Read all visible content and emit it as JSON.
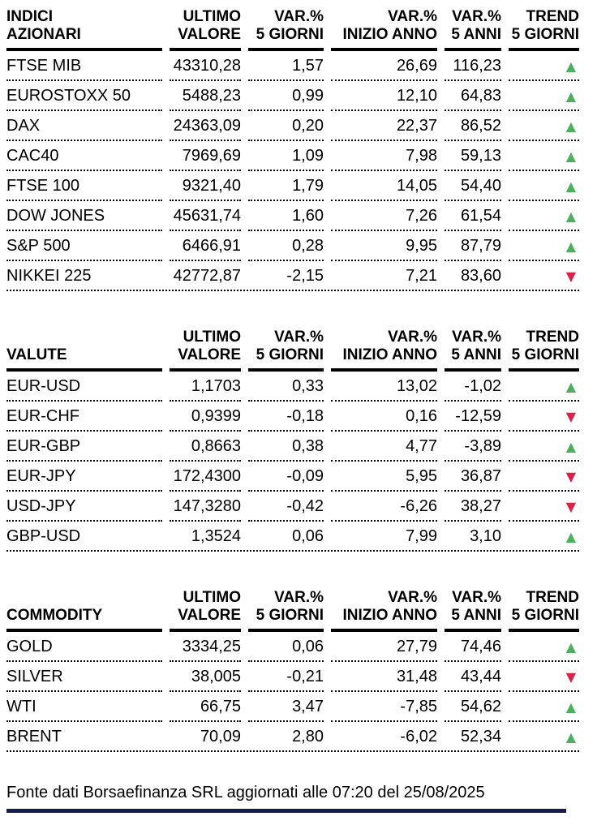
{
  "colors": {
    "trend_up": "#4db05f",
    "trend_down": "#d9214a",
    "header_rule": "#000000",
    "text": "#000000",
    "bottom_bar": "#171c4f"
  },
  "icons": {
    "trend_up": "▲",
    "trend_down": "▼"
  },
  "columns": [
    {
      "id": "ultimo-valore",
      "line1": "ULTIMO",
      "line2": "VALORE"
    },
    {
      "id": "var-5-giorni",
      "line1": "VAR.%",
      "line2": "5 GIORNI"
    },
    {
      "id": "var-inizio-anno",
      "line1": "VAR.%",
      "line2": "INIZIO ANNO"
    },
    {
      "id": "var-5-anni",
      "line1": "VAR.%",
      "line2": "5 ANNI"
    },
    {
      "id": "trend-5-giorni",
      "line1": "TREND",
      "line2": "5 GIORNI"
    }
  ],
  "tables": [
    {
      "id": "indici-azionari",
      "title_line1": "INDICI",
      "title_line2": "AZIONARI",
      "rows": [
        {
          "label": "FTSE MIB",
          "ultimo_valore": "43310,28",
          "var_5_giorni": "1,57",
          "var_inizio_anno": "26,69",
          "var_5_anni": "116,23",
          "trend": "up"
        },
        {
          "label": "EUROSTOXX 50",
          "ultimo_valore": "5488,23",
          "var_5_giorni": "0,99",
          "var_inizio_anno": "12,10",
          "var_5_anni": "64,83",
          "trend": "up"
        },
        {
          "label": "DAX",
          "ultimo_valore": "24363,09",
          "var_5_giorni": "0,20",
          "var_inizio_anno": "22,37",
          "var_5_anni": "86,52",
          "trend": "up"
        },
        {
          "label": "CAC40",
          "ultimo_valore": "7969,69",
          "var_5_giorni": "1,09",
          "var_inizio_anno": "7,98",
          "var_5_anni": "59,13",
          "trend": "up"
        },
        {
          "label": "FTSE 100",
          "ultimo_valore": "9321,40",
          "var_5_giorni": "1,79",
          "var_inizio_anno": "14,05",
          "var_5_anni": "54,40",
          "trend": "up"
        },
        {
          "label": "DOW JONES",
          "ultimo_valore": "45631,74",
          "var_5_giorni": "1,60",
          "var_inizio_anno": "7,26",
          "var_5_anni": "61,54",
          "trend": "up"
        },
        {
          "label": "S&P 500",
          "ultimo_valore": "6466,91",
          "var_5_giorni": "0,28",
          "var_inizio_anno": "9,95",
          "var_5_anni": "87,79",
          "trend": "up"
        },
        {
          "label": "NIKKEI 225",
          "ultimo_valore": "42772,87",
          "var_5_giorni": "-2,15",
          "var_inizio_anno": "7,21",
          "var_5_anni": "83,60",
          "trend": "down"
        }
      ]
    },
    {
      "id": "valute",
      "title_line1": "",
      "title_line2": "VALUTE",
      "rows": [
        {
          "label": "EUR-USD",
          "ultimo_valore": "1,1703",
          "var_5_giorni": "0,33",
          "var_inizio_anno": "13,02",
          "var_5_anni": "-1,02",
          "trend": "up"
        },
        {
          "label": "EUR-CHF",
          "ultimo_valore": "0,9399",
          "var_5_giorni": "-0,18",
          "var_inizio_anno": "0,16",
          "var_5_anni": "-12,59",
          "trend": "down"
        },
        {
          "label": "EUR-GBP",
          "ultimo_valore": "0,8663",
          "var_5_giorni": "0,38",
          "var_inizio_anno": "4,77",
          "var_5_anni": "-3,89",
          "trend": "up"
        },
        {
          "label": "EUR-JPY",
          "ultimo_valore": "172,4300",
          "var_5_giorni": "-0,09",
          "var_inizio_anno": "5,95",
          "var_5_anni": "36,87",
          "trend": "down"
        },
        {
          "label": "USD-JPY",
          "ultimo_valore": "147,3280",
          "var_5_giorni": "-0,42",
          "var_inizio_anno": "-6,26",
          "var_5_anni": "38,27",
          "trend": "down"
        },
        {
          "label": "GBP-USD",
          "ultimo_valore": "1,3524",
          "var_5_giorni": "0,06",
          "var_inizio_anno": "7,99",
          "var_5_anni": "3,10",
          "trend": "up"
        }
      ]
    },
    {
      "id": "commodity",
      "title_line1": "",
      "title_line2": "COMMODITY",
      "rows": [
        {
          "label": "GOLD",
          "ultimo_valore": "3334,25",
          "var_5_giorni": "0,06",
          "var_inizio_anno": "27,79",
          "var_5_anni": "74,46",
          "trend": "up"
        },
        {
          "label": "SILVER",
          "ultimo_valore": "38,005",
          "var_5_giorni": "-0,21",
          "var_inizio_anno": "31,48",
          "var_5_anni": "43,44",
          "trend": "down"
        },
        {
          "label": "WTI",
          "ultimo_valore": "66,75",
          "var_5_giorni": "3,47",
          "var_inizio_anno": "-7,85",
          "var_5_anni": "54,62",
          "trend": "up"
        },
        {
          "label": "BRENT",
          "ultimo_valore": "70,09",
          "var_5_giorni": "2,80",
          "var_inizio_anno": "-6,02",
          "var_5_anni": "52,34",
          "trend": "up"
        }
      ]
    }
  ],
  "footer": {
    "source_text": "Fonte dati Borsaefinanza SRL aggiornati alle 07:20 del 25/08/2025"
  }
}
